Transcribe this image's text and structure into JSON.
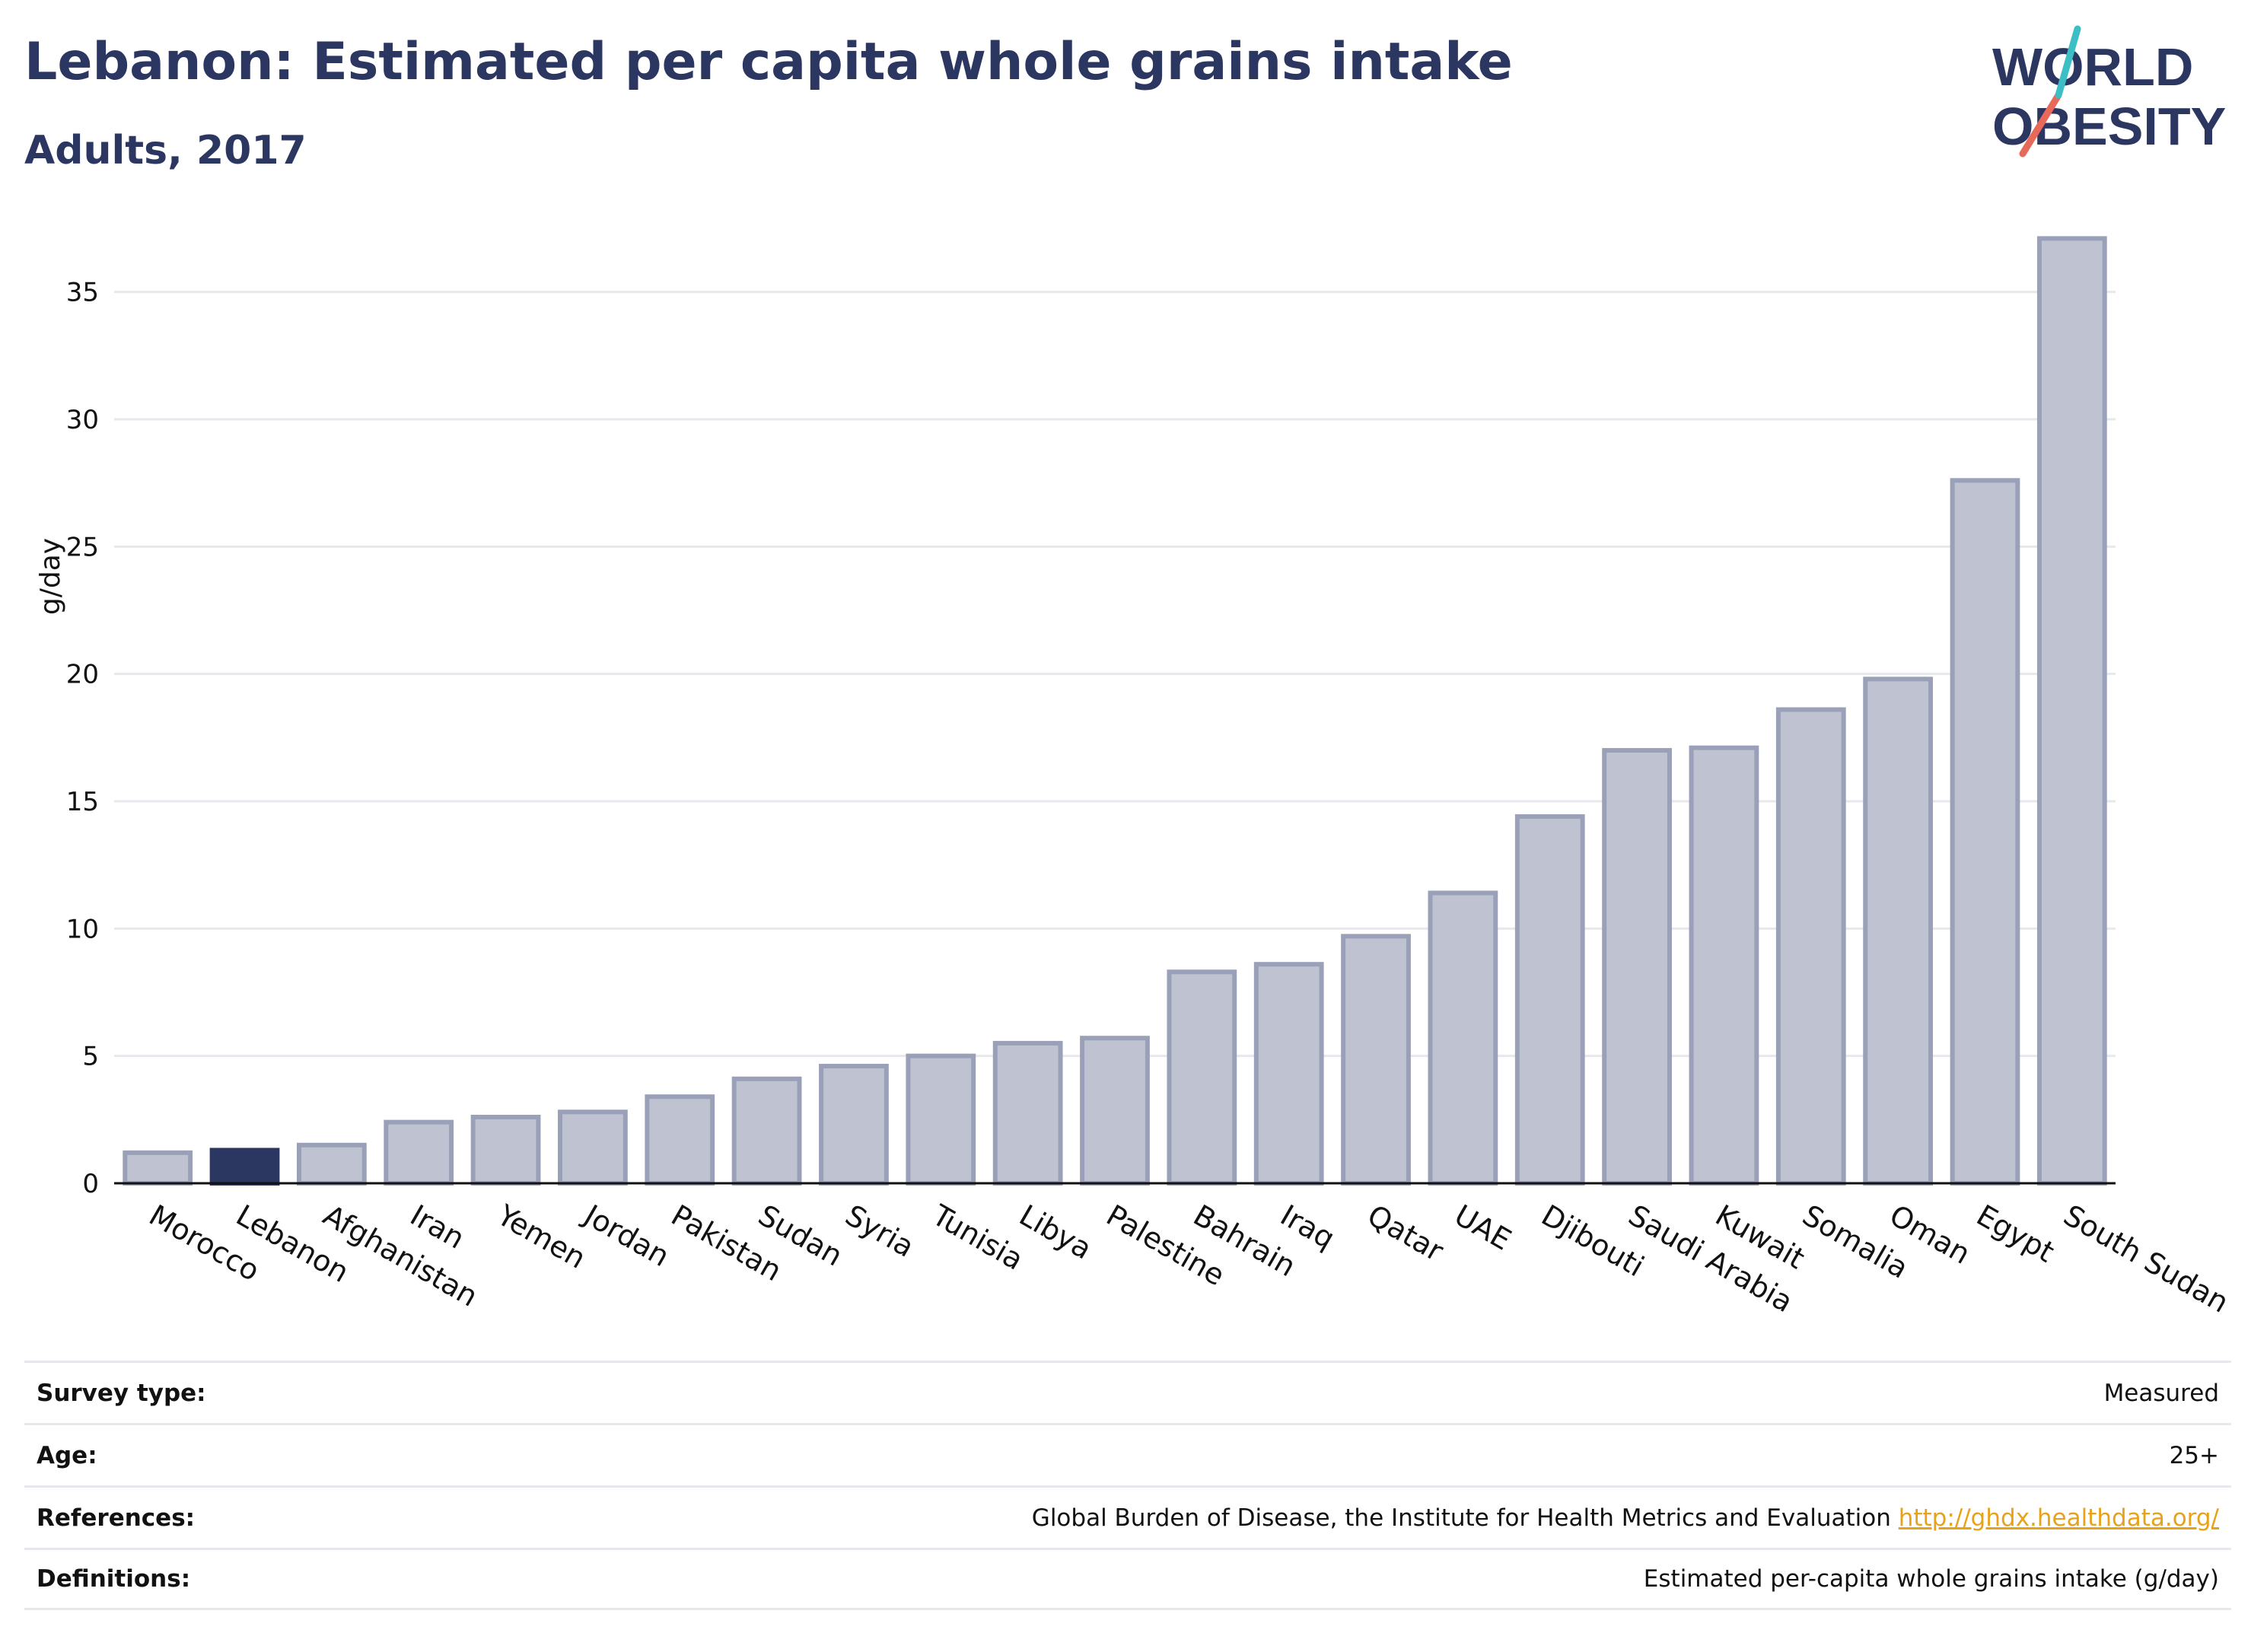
{
  "header": {
    "title": "Lebanon: Estimated per capita whole grains intake",
    "subtitle": "Adults, 2017"
  },
  "logo": {
    "line1": "WORLD",
    "line2": "OBESITY",
    "color": "#2b3661",
    "accent_teal": "#3bbfc4",
    "accent_coral": "#e8685a"
  },
  "chart_data": {
    "type": "bar",
    "title": "Lebanon: Estimated per capita whole grains intake",
    "subtitle": "Adults, 2017",
    "xlabel": "",
    "ylabel": "g/day",
    "ylim": [
      0,
      37.5
    ],
    "yticks": [
      0,
      5,
      10,
      15,
      20,
      25,
      30,
      35
    ],
    "grid": true,
    "highlight": "Lebanon",
    "colors": {
      "bar": "#bfc3d1",
      "bar_edge": "#9aa0b8",
      "highlight": "#2b3661",
      "grid": "#e6e8ee"
    },
    "categories": [
      "Morocco",
      "Lebanon",
      "Afghanistan",
      "Iran",
      "Yemen",
      "Jordan",
      "Pakistan",
      "Sudan",
      "Syria",
      "Tunisia",
      "Libya",
      "Palestine",
      "Bahrain",
      "Iraq",
      "Qatar",
      "UAE",
      "Djibouti",
      "Saudi Arabia",
      "Kuwait",
      "Somalia",
      "Oman",
      "Egypt",
      "South Sudan"
    ],
    "values": [
      1.2,
      1.3,
      1.5,
      2.4,
      2.6,
      2.8,
      3.4,
      4.1,
      4.6,
      5.0,
      5.5,
      5.7,
      8.3,
      8.6,
      9.7,
      11.4,
      14.4,
      17.0,
      17.1,
      18.6,
      19.8,
      27.6,
      37.1
    ]
  },
  "footer": {
    "rows": [
      {
        "label": "Survey type:",
        "value": "Measured"
      },
      {
        "label": "Age:",
        "value": "25+"
      },
      {
        "label": "References:",
        "value": "Global Burden of Disease, the Institute for Health Metrics and Evaluation",
        "link": "http://ghdx.healthdata.org/"
      },
      {
        "label": "Definitions:",
        "value": "Estimated per-capita whole grains intake (g/day)"
      }
    ]
  }
}
